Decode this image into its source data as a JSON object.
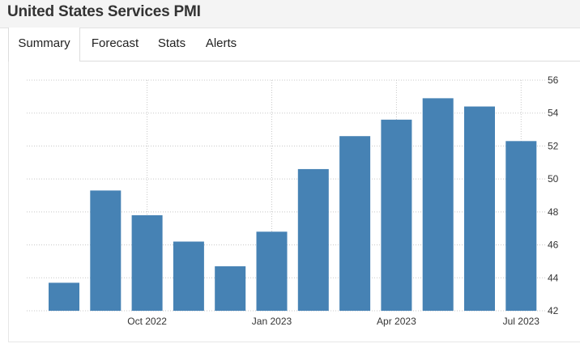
{
  "page": {
    "title": "United States Services PMI"
  },
  "tabs": [
    {
      "label": "Summary",
      "active": true
    },
    {
      "label": "Forecast",
      "active": false
    },
    {
      "label": "Stats",
      "active": false
    },
    {
      "label": "Alerts",
      "active": false
    }
  ],
  "colors": {
    "bar": "#4682b4",
    "grid": "#c8c8c8",
    "text": "#333333"
  },
  "chart_data": {
    "type": "bar",
    "title": "",
    "xlabel": "",
    "ylabel": "",
    "categories": [
      "Aug 2022",
      "Sep 2022",
      "Oct 2022",
      "Nov 2022",
      "Dec 2022",
      "Jan 2023",
      "Feb 2023",
      "Mar 2023",
      "Apr 2023",
      "May 2023",
      "Jun 2023",
      "Jul 2023"
    ],
    "values": [
      43.7,
      49.3,
      47.8,
      46.2,
      44.7,
      46.8,
      50.6,
      52.6,
      53.6,
      54.9,
      54.4,
      52.3
    ],
    "ylim": [
      42,
      56
    ],
    "yticks": [
      42,
      44,
      46,
      48,
      50,
      52,
      54,
      56
    ],
    "xtick_labels": [
      {
        "category": "Oct 2022",
        "label": "Oct 2022"
      },
      {
        "category": "Jan 2023",
        "label": "Jan 2023"
      },
      {
        "category": "Apr 2023",
        "label": "Apr 2023"
      },
      {
        "category": "Jul 2023",
        "label": "Jul 2023"
      }
    ],
    "y_axis_side": "right",
    "grid": true,
    "legend": "none"
  }
}
